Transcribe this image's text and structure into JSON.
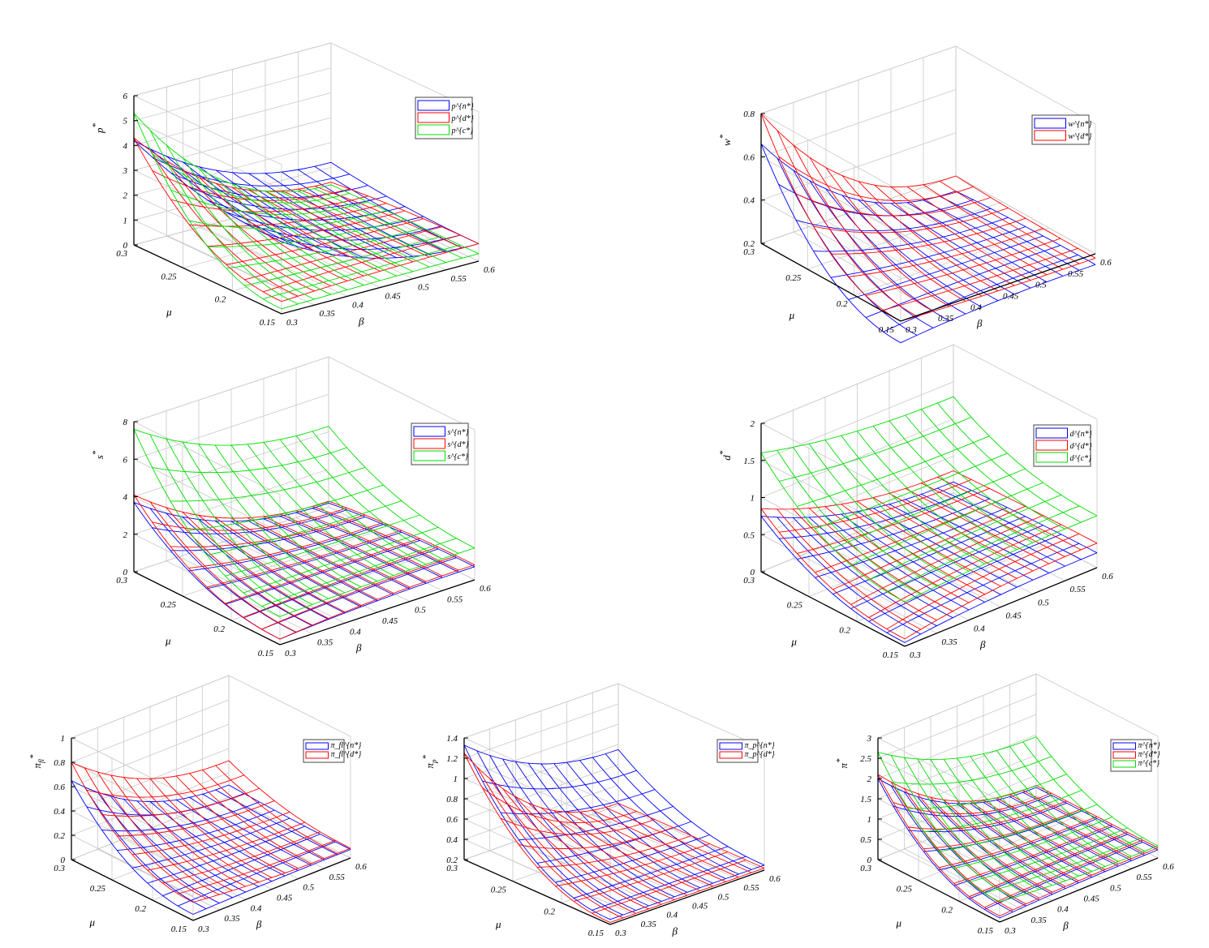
{
  "figure_grid": {
    "panels": [
      {
        "id": "p",
        "ylabel_base": "p",
        "ylabel_sup": "*",
        "ylabel_sub": "",
        "zticks": [
          "0",
          "1",
          "2",
          "3",
          "4",
          "5",
          "6"
        ]
      },
      {
        "id": "w",
        "ylabel_base": "w",
        "ylabel_sup": "*",
        "ylabel_sub": "",
        "zticks": [
          "0.2",
          "0.4",
          "0.6",
          "0.8"
        ]
      },
      {
        "id": "s",
        "ylabel_base": "s",
        "ylabel_sup": "*",
        "ylabel_sub": "",
        "zticks": [
          "0",
          "2",
          "4",
          "6",
          "8"
        ]
      },
      {
        "id": "d",
        "ylabel_base": "d",
        "ylabel_sup": "*",
        "ylabel_sub": "",
        "zticks": [
          "0",
          "0.5",
          "1",
          "1.5",
          "2"
        ]
      },
      {
        "id": "pi_m",
        "ylabel_base": "π",
        "ylabel_sup": "*",
        "ylabel_sub": "fl",
        "zticks": [
          "0",
          "0.2",
          "0.4",
          "0.6",
          "0.8",
          "1"
        ]
      },
      {
        "id": "pi_p",
        "ylabel_base": "π",
        "ylabel_sup": "*",
        "ylabel_sub": "p",
        "zticks": [
          "0.2",
          "0.4",
          "0.6",
          "0.8",
          "1",
          "1.2",
          "1.4"
        ]
      },
      {
        "id": "pi",
        "ylabel_base": "π",
        "ylabel_sup": "*",
        "ylabel_sub": "",
        "zticks": [
          "0",
          "0.5",
          "1",
          "1.5",
          "2",
          "2.5",
          "3"
        ]
      }
    ]
  },
  "chart_data": [
    {
      "type": "surface",
      "xlabel": "β",
      "ylabel": "μ",
      "zlabel": "p*",
      "x_ticks": [
        "0.3",
        "0.35",
        "0.4",
        "0.45",
        "0.5",
        "0.55",
        "0.6"
      ],
      "y_ticks": [
        "0.15",
        "0.2",
        "0.25",
        "0.3"
      ],
      "xlim": [
        0.3,
        0.6
      ],
      "ylim": [
        0.15,
        0.3
      ],
      "zlim": [
        0,
        6
      ],
      "grid": true,
      "legend_position": "top-right",
      "series": [
        {
          "name": "p^{n*}",
          "color": "#0000ff",
          "z_at_beta03_mu03": 4.2,
          "z_at_beta03_mu015": 2.9,
          "z_at_beta06_mu03": 1.2,
          "z_at_beta06_mu015": 0.7
        },
        {
          "name": "p^{d*}",
          "color": "#ff0000",
          "z_at_beta03_mu03": 4.3,
          "z_at_beta03_mu015": 0.5,
          "z_at_beta06_mu03": 0.4,
          "z_at_beta06_mu015": 0.7
        },
        {
          "name": "p^{c*}",
          "color": "#00dd00",
          "z_at_beta03_mu03": 5.3,
          "z_at_beta03_mu015": 0.2,
          "z_at_beta06_mu03": 0.3,
          "z_at_beta06_mu015": 0.3
        }
      ]
    },
    {
      "type": "surface",
      "xlabel": "β",
      "ylabel": "μ",
      "zlabel": "w*",
      "x_ticks": [
        "0.3",
        "0.35",
        "0.4",
        "0.45",
        "0.5",
        "0.55",
        "0.6"
      ],
      "y_ticks": [
        "0.15",
        "0.2",
        "0.25",
        "0.3"
      ],
      "xlim": [
        0.3,
        0.6
      ],
      "ylim": [
        0.15,
        0.3
      ],
      "zlim": [
        0.2,
        0.8
      ],
      "grid": true,
      "legend_position": "top-right",
      "series": [
        {
          "name": "w^{n*}",
          "color": "#0000ff",
          "z_at_beta03_mu03": 0.66,
          "z_at_beta03_mu015": 0.1,
          "z_at_beta06_mu03": 0.13,
          "z_at_beta06_mu015": 0.15
        },
        {
          "name": "w^{d*}",
          "color": "#ff0000",
          "z_at_beta03_mu03": 0.8,
          "z_at_beta03_mu015": 0.2,
          "z_at_beta06_mu03": 0.2,
          "z_at_beta06_mu015": 0.18
        }
      ]
    },
    {
      "type": "surface",
      "xlabel": "β",
      "ylabel": "μ",
      "zlabel": "s*",
      "x_ticks": [
        "0.3",
        "0.35",
        "0.4",
        "0.45",
        "0.5",
        "0.55",
        "0.6"
      ],
      "y_ticks": [
        "0.15",
        "0.2",
        "0.25",
        "0.3"
      ],
      "xlim": [
        0.3,
        0.6
      ],
      "ylim": [
        0.15,
        0.3
      ],
      "zlim": [
        0,
        8
      ],
      "grid": true,
      "legend_position": "top-right",
      "series": [
        {
          "name": "s^{n*}",
          "color": "#0000ff",
          "z_at_beta03_mu03": 3.7,
          "z_at_beta03_mu015": 0.3,
          "z_at_beta06_mu03": 0.2,
          "z_at_beta06_mu015": 0.7
        },
        {
          "name": "s^{d*}",
          "color": "#ff0000",
          "z_at_beta03_mu03": 4.1,
          "z_at_beta03_mu015": 0.3,
          "z_at_beta06_mu03": 0.3,
          "z_at_beta06_mu015": 0.8
        },
        {
          "name": "s^{c*}",
          "color": "#00dd00",
          "z_at_beta03_mu03": 7.6,
          "z_at_beta03_mu015": 1.5,
          "z_at_beta06_mu03": 4.3,
          "z_at_beta06_mu015": 1.7
        }
      ]
    },
    {
      "type": "surface",
      "xlabel": "β",
      "ylabel": "μ",
      "zlabel": "d*",
      "x_ticks": [
        "0.3",
        "0.35",
        "0.4",
        "0.45",
        "0.5",
        "0.55",
        "0.6"
      ],
      "y_ticks": [
        "0.15",
        "0.2",
        "0.25",
        "0.3"
      ],
      "xlim": [
        0.3,
        0.6
      ],
      "ylim": [
        0.15,
        0.3
      ],
      "zlim": [
        0,
        2
      ],
      "grid": true,
      "legend_position": "top-right",
      "series": [
        {
          "name": "d^{n*}",
          "color": "#0000ff",
          "z_at_beta03_mu03": 0.75,
          "z_at_beta03_mu015": 0.05,
          "z_at_beta06_mu03": 0.15,
          "z_at_beta06_mu015": 0.2
        },
        {
          "name": "d^{d*}",
          "color": "#ff0000",
          "z_at_beta03_mu03": 0.85,
          "z_at_beta03_mu015": 0.1,
          "z_at_beta06_mu03": 0.3,
          "z_at_beta06_mu015": 0.33
        },
        {
          "name": "d^{c*}",
          "color": "#00dd00",
          "z_at_beta03_mu03": 1.6,
          "z_at_beta03_mu015": 0.6,
          "z_at_beta06_mu03": 1.3,
          "z_at_beta06_mu015": 0.7
        }
      ]
    },
    {
      "type": "surface",
      "xlabel": "β",
      "ylabel": "μ",
      "zlabel": "π_fl*",
      "x_ticks": [
        "0.3",
        "0.35",
        "0.4",
        "0.45",
        "0.5",
        "0.55",
        "0.6"
      ],
      "y_ticks": [
        "0.15",
        "0.2",
        "0.25",
        "0.3"
      ],
      "xlim": [
        0.3,
        0.6
      ],
      "ylim": [
        0.15,
        0.3
      ],
      "zlim": [
        0,
        1
      ],
      "grid": true,
      "legend_position": "top-right",
      "series": [
        {
          "name": "π_fl^{n*}",
          "color": "#0000ff",
          "z_at_beta03_mu03": 0.65,
          "z_at_beta03_mu015": 0.05,
          "z_at_beta06_mu03": 0.1,
          "z_at_beta06_mu015": 0.07
        },
        {
          "name": "π_fl^{d*}",
          "color": "#ff0000",
          "z_at_beta03_mu03": 0.8,
          "z_at_beta03_mu015": 0.15,
          "z_at_beta06_mu03": 0.3,
          "z_at_beta06_mu015": 0.08
        }
      ]
    },
    {
      "type": "surface",
      "xlabel": "β",
      "ylabel": "μ",
      "zlabel": "π_p*",
      "x_ticks": [
        "0.3",
        "0.35",
        "0.4",
        "0.45",
        "0.5",
        "0.55",
        "0.6"
      ],
      "y_ticks": [
        "0.15",
        "0.2",
        "0.25",
        "0.3"
      ],
      "xlim": [
        0.3,
        0.6
      ],
      "ylim": [
        0.15,
        0.3
      ],
      "zlim": [
        0.2,
        1.4
      ],
      "grid": true,
      "legend_position": "top-right",
      "series": [
        {
          "name": "π_p^{n*}",
          "color": "#0000ff",
          "z_at_beta03_mu03": 1.33,
          "z_at_beta03_mu015": 0.25,
          "z_at_beta06_mu03": 0.75,
          "z_at_beta06_mu015": 0.25
        },
        {
          "name": "π_p^{d*}",
          "color": "#ff0000",
          "z_at_beta03_mu03": 1.25,
          "z_at_beta03_mu015": 0.22,
          "z_at_beta06_mu03": 0.22,
          "z_at_beta06_mu015": 0.22
        }
      ]
    },
    {
      "type": "surface",
      "xlabel": "β",
      "ylabel": "μ",
      "zlabel": "π*",
      "x_ticks": [
        "0.3",
        "0.35",
        "0.4",
        "0.45",
        "0.5",
        "0.55",
        "0.6"
      ],
      "y_ticks": [
        "0.15",
        "0.2",
        "0.25",
        "0.3"
      ],
      "xlim": [
        0.3,
        0.6
      ],
      "ylim": [
        0.15,
        0.3
      ],
      "zlim": [
        0,
        3
      ],
      "grid": true,
      "legend_position": "top-right",
      "series": [
        {
          "name": "π^{n*}",
          "color": "#0000ff",
          "z_at_beta03_mu03": 2.0,
          "z_at_beta03_mu015": 0.1,
          "z_at_beta06_mu03": 0.2,
          "z_at_beta06_mu015": 0.2
        },
        {
          "name": "π^{d*}",
          "color": "#ff0000",
          "z_at_beta03_mu03": 2.1,
          "z_at_beta03_mu015": 0.15,
          "z_at_beta06_mu03": 0.25,
          "z_at_beta06_mu015": 0.25
        },
        {
          "name": "π^{c*}",
          "color": "#00dd00",
          "z_at_beta03_mu03": 2.65,
          "z_at_beta03_mu015": 0.5,
          "z_at_beta06_mu03": 1.45,
          "z_at_beta06_mu015": 0.3
        }
      ]
    }
  ]
}
